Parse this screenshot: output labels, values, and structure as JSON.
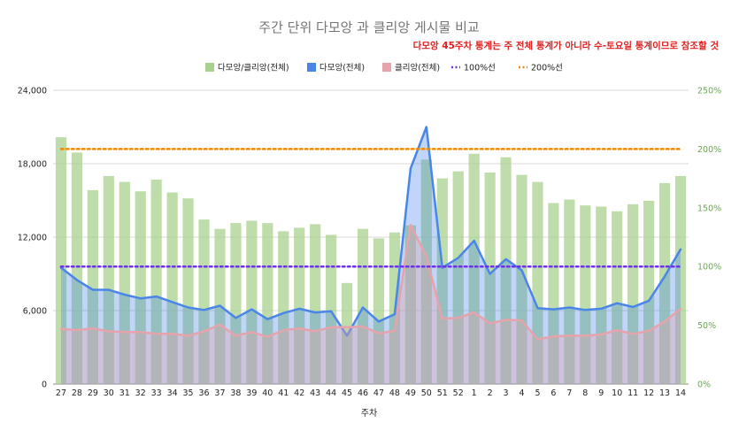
{
  "chart_data": {
    "type": "bar",
    "title": "주간 단위 다모앙 과 클리앙 게시물 비교",
    "annotation": "다모앙 45주차 통계는 주 전체 통계가 아니라 수-토요일 통계이므로 참조할 것",
    "xlabel": "주차",
    "ylabel": "",
    "ylim": [
      0,
      24000
    ],
    "y2lim": [
      0,
      2.5
    ],
    "y_ticks": [
      "0",
      "6,000",
      "12,000",
      "18,000",
      "24,000"
    ],
    "y2_ticks": [
      "0%",
      "50%",
      "100%",
      "150%",
      "200%",
      "250%"
    ],
    "grid": true,
    "legend_position": "top",
    "categories": [
      "27",
      "28",
      "29",
      "30",
      "31",
      "32",
      "33",
      "34",
      "35",
      "36",
      "37",
      "38",
      "39",
      "40",
      "41",
      "42",
      "43",
      "44",
      "45",
      "46",
      "47",
      "48",
      "49",
      "50",
      "51",
      "52",
      "1",
      "2",
      "3",
      "4",
      "5",
      "6",
      "7",
      "8",
      "9",
      "10",
      "11",
      "12",
      "13",
      "14"
    ],
    "series": [
      {
        "name": "다모앙/클리앙(전체)",
        "kind": "bar",
        "axis": "right",
        "color": "#a9d18e",
        "values": [
          2.1,
          1.97,
          1.65,
          1.77,
          1.72,
          1.64,
          1.74,
          1.63,
          1.58,
          1.4,
          1.32,
          1.37,
          1.39,
          1.37,
          1.3,
          1.33,
          1.36,
          1.27,
          0.86,
          1.32,
          1.24,
          1.29,
          1.35,
          1.91,
          1.75,
          1.81,
          1.96,
          1.8,
          1.93,
          1.78,
          1.72,
          1.54,
          1.57,
          1.52,
          1.51,
          1.47,
          1.53,
          1.56,
          1.71,
          1.77
        ]
      },
      {
        "name": "다모앙(전체)",
        "kind": "area",
        "axis": "left",
        "color": "#4a86e8",
        "values": [
          9500,
          8500,
          7700,
          7700,
          7300,
          7000,
          7150,
          6700,
          6250,
          6050,
          6400,
          5400,
          6100,
          5300,
          5800,
          6150,
          5850,
          5950,
          3950,
          6250,
          5100,
          5700,
          17600,
          21000,
          9500,
          10300,
          11700,
          9000,
          10200,
          9300,
          6200,
          6100,
          6250,
          6050,
          6150,
          6600,
          6300,
          6800,
          8800,
          11000
        ]
      },
      {
        "name": "클리앙(전체)",
        "kind": "area",
        "axis": "left",
        "color": "#e6a3ab",
        "values": [
          4500,
          4400,
          4550,
          4300,
          4250,
          4250,
          4100,
          4100,
          3950,
          4300,
          4850,
          3950,
          4250,
          3850,
          4400,
          4550,
          4300,
          4650,
          4650,
          4700,
          4150,
          4350,
          13000,
          10400,
          5350,
          5400,
          5850,
          4950,
          5250,
          5200,
          3650,
          3900,
          3950,
          3950,
          4050,
          4400,
          4100,
          4350,
          5100,
          6150
        ]
      },
      {
        "name": "100%선",
        "kind": "reference",
        "axis": "right",
        "color": "#6c32e6",
        "value": 1.0
      },
      {
        "name": "200%선",
        "kind": "reference",
        "axis": "right",
        "color": "#f08a00",
        "value": 2.0
      }
    ]
  }
}
